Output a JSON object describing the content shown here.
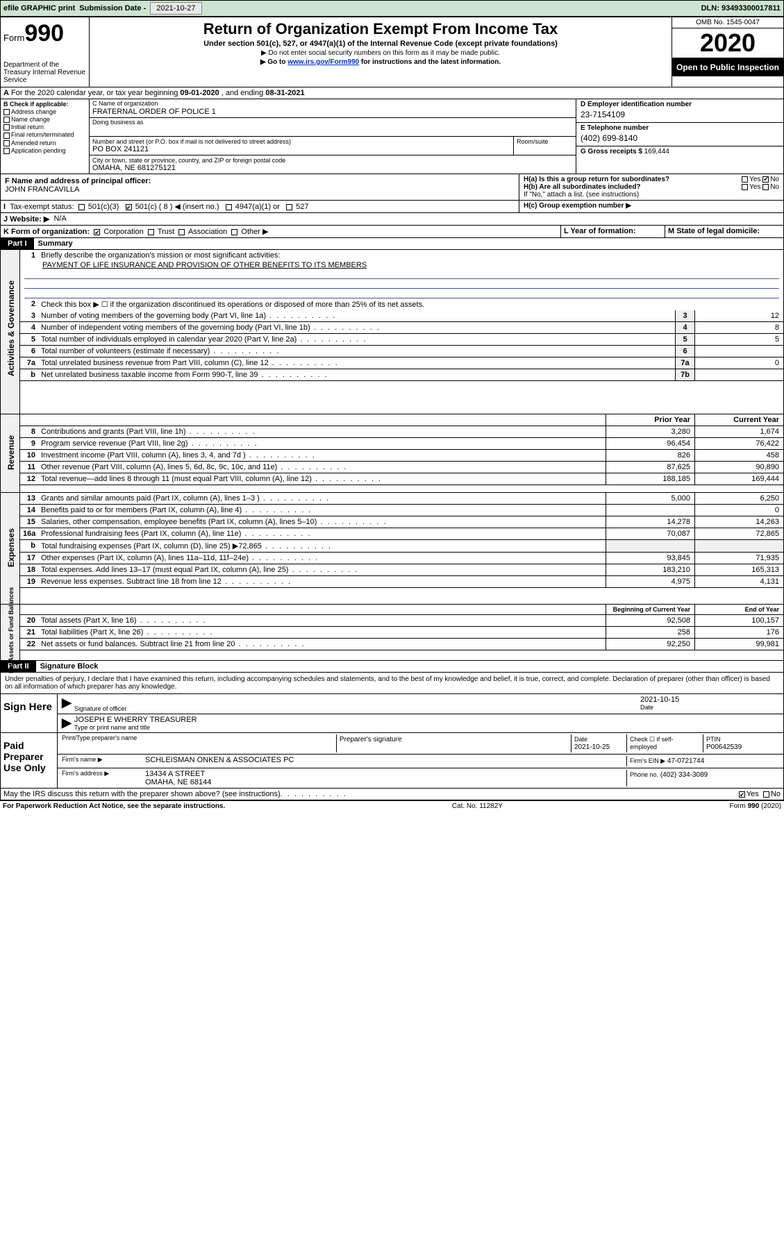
{
  "topbar": {
    "efile": "efile GRAPHIC print",
    "subdate_label": "Submission Date -",
    "subdate": "2021-10-27",
    "dln_label": "DLN:",
    "dln": "93493300017811"
  },
  "head": {
    "form": "Form",
    "num": "990",
    "dept": "Department of the Treasury\nInternal Revenue Service",
    "title": "Return of Organization Exempt From Income Tax",
    "subtitle": "Under section 501(c), 527, or 4947(a)(1) of the Internal Revenue Code (except private foundations)",
    "note1": "▶ Do not enter social security numbers on this form as it may be made public.",
    "note2_pre": "▶ Go to ",
    "note2_link": "www.irs.gov/Form990",
    "note2_post": " for instructions and the latest information.",
    "omb": "OMB No. 1545-0047",
    "year": "2020",
    "open": "Open to Public Inspection"
  },
  "lineA": {
    "text_pre": "For the 2020 calendar year, or tax year beginning ",
    "begin": "09-01-2020",
    "mid": " , and ending ",
    "end": "08-31-2021"
  },
  "colB": {
    "head": "B Check if applicable:",
    "items": [
      "Address change",
      "Name change",
      "Initial return",
      "Final return/terminated",
      "Amended return",
      "Application pending"
    ]
  },
  "C": {
    "name_label": "C Name of organization",
    "name": "FRATERNAL ORDER OF POLICE 1",
    "dba_label": "Doing business as",
    "addr_label": "Number and street (or P.O. box if mail is not delivered to street address)",
    "room_label": "Room/suite",
    "addr": "PO BOX 241121",
    "city_label": "City or town, state or province, country, and ZIP or foreign postal code",
    "city": "OMAHA, NE  681275121"
  },
  "D": {
    "label": "D Employer identification number",
    "val": "23-7154109"
  },
  "E": {
    "label": "E Telephone number",
    "val": "(402) 699-8140"
  },
  "G": {
    "label": "G Gross receipts $",
    "val": "169,444"
  },
  "F": {
    "label": "F  Name and address of principal officer:",
    "val": "JOHN FRANCAVILLA"
  },
  "H": {
    "a": "H(a)  Is this a group return for subordinates?",
    "b": "H(b)  Are all subordinates included?",
    "bnote": "If \"No,\" attach a list. (see instructions)",
    "c": "H(c)  Group exemption number ▶",
    "yes": "Yes",
    "no": "No"
  },
  "I": {
    "label": "Tax-exempt status:",
    "opts": [
      "501(c)(3)",
      "501(c) ( 8 ) ◀ (insert no.)",
      "4947(a)(1) or",
      "527"
    ]
  },
  "J": {
    "label": "J   Website: ▶",
    "val": "N/A"
  },
  "K": {
    "label": "K Form of organization:",
    "opts": [
      "Corporation",
      "Trust",
      "Association",
      "Other ▶"
    ]
  },
  "L": {
    "label": "L Year of formation:"
  },
  "M": {
    "label": "M State of legal domicile:"
  },
  "part1": {
    "bar": "Part I",
    "title": "Summary"
  },
  "gov": {
    "l1": "Briefly describe the organization's mission or most significant activities:",
    "l1v": "PAYMENT OF LIFE INSURANCE AND PROVISION OF OTHER BENEFITS TO ITS MEMBERS",
    "l2": "Check this box ▶ ☐  if the organization discontinued its operations or disposed of more than 25% of its net assets.",
    "rows": [
      {
        "n": "3",
        "t": "Number of voting members of the governing body (Part VI, line 1a)",
        "b": "3",
        "v": "12"
      },
      {
        "n": "4",
        "t": "Number of independent voting members of the governing body (Part VI, line 1b)",
        "b": "4",
        "v": "8"
      },
      {
        "n": "5",
        "t": "Total number of individuals employed in calendar year 2020 (Part V, line 2a)",
        "b": "5",
        "v": "5"
      },
      {
        "n": "6",
        "t": "Total number of volunteers (estimate if necessary)",
        "b": "6",
        "v": ""
      },
      {
        "n": "7a",
        "t": "Total unrelated business revenue from Part VIII, column (C), line 12",
        "b": "7a",
        "v": "0"
      },
      {
        "n": "b",
        "t": "Net unrelated business taxable income from Form 990-T, line 39",
        "b": "7b",
        "v": ""
      }
    ]
  },
  "cols": {
    "prior": "Prior Year",
    "current": "Current Year",
    "begin": "Beginning of Current Year",
    "end": "End of Year"
  },
  "rev": [
    {
      "n": "8",
      "t": "Contributions and grants (Part VIII, line 1h)",
      "p": "3,280",
      "c": "1,674"
    },
    {
      "n": "9",
      "t": "Program service revenue (Part VIII, line 2g)",
      "p": "96,454",
      "c": "76,422"
    },
    {
      "n": "10",
      "t": "Investment income (Part VIII, column (A), lines 3, 4, and 7d )",
      "p": "826",
      "c": "458"
    },
    {
      "n": "11",
      "t": "Other revenue (Part VIII, column (A), lines 5, 6d, 8c, 9c, 10c, and 11e)",
      "p": "87,625",
      "c": "90,890"
    },
    {
      "n": "12",
      "t": "Total revenue—add lines 8 through 11 (must equal Part VIII, column (A), line 12)",
      "p": "188,185",
      "c": "169,444"
    }
  ],
  "exp": [
    {
      "n": "13",
      "t": "Grants and similar amounts paid (Part IX, column (A), lines 1–3 )",
      "p": "5,000",
      "c": "6,250"
    },
    {
      "n": "14",
      "t": "Benefits paid to or for members (Part IX, column (A), line 4)",
      "p": "",
      "c": "0"
    },
    {
      "n": "15",
      "t": "Salaries, other compensation, employee benefits (Part IX, column (A), lines 5–10)",
      "p": "14,278",
      "c": "14,263"
    },
    {
      "n": "16a",
      "t": "Professional fundraising fees (Part IX, column (A), line 11e)",
      "p": "70,087",
      "c": "72,865"
    },
    {
      "n": "b",
      "t": "Total fundraising expenses (Part IX, column (D), line 25) ▶72,865",
      "p": null,
      "c": null
    },
    {
      "n": "17",
      "t": "Other expenses (Part IX, column (A), lines 11a–11d, 11f–24e)",
      "p": "93,845",
      "c": "71,935"
    },
    {
      "n": "18",
      "t": "Total expenses. Add lines 13–17 (must equal Part IX, column (A), line 25)",
      "p": "183,210",
      "c": "165,313"
    },
    {
      "n": "19",
      "t": "Revenue less expenses. Subtract line 18 from line 12",
      "p": "4,975",
      "c": "4,131"
    }
  ],
  "net": [
    {
      "n": "20",
      "t": "Total assets (Part X, line 16)",
      "p": "92,508",
      "c": "100,157"
    },
    {
      "n": "21",
      "t": "Total liabilities (Part X, line 26)",
      "p": "258",
      "c": "176"
    },
    {
      "n": "22",
      "t": "Net assets or fund balances. Subtract line 21 from line 20",
      "p": "92,250",
      "c": "99,981"
    }
  ],
  "part2": {
    "bar": "Part II",
    "title": "Signature Block"
  },
  "sig": {
    "decl": "Under penalties of perjury, I declare that I have examined this return, including accompanying schedules and statements, and to the best of my knowledge and belief, it is true, correct, and complete. Declaration of preparer (other than officer) is based on all information of which preparer has any knowledge.",
    "here": "Sign Here",
    "sigoff": "Signature of officer",
    "date": "Date",
    "datev": "2021-10-15",
    "name": "JOSEPH E WHERRY TREASURER",
    "nametxt": "Type or print name and title"
  },
  "paid": {
    "label": "Paid Preparer Use Only",
    "h1": "Print/Type preparer's name",
    "h2": "Preparer's signature",
    "h3": "Date",
    "h3v": "2021-10-25",
    "h4": "Check ☐ if self-employed",
    "h5": "PTIN",
    "h5v": "P00642539",
    "firm": "Firm's name      ▶",
    "firmv": "SCHLEISMAN ONKEN & ASSOCIATES PC",
    "ein": "Firm's EIN ▶",
    "einv": "47-0721744",
    "addr": "Firm's address ▶",
    "addrv": "13434 A STREET\nOMAHA, NE  68144",
    "phone": "Phone no.",
    "phonev": "(402) 334-3089"
  },
  "discuss": {
    "txt": "May the IRS discuss this return with the preparer shown above? (see instructions)",
    "yes": "Yes",
    "no": "No"
  },
  "footer": {
    "l": "For Paperwork Reduction Act Notice, see the separate instructions.",
    "m": "Cat. No. 11282Y",
    "r": "Form 990 (2020)"
  },
  "vtabs": {
    "gov": "Activities & Governance",
    "rev": "Revenue",
    "exp": "Expenses",
    "net": "Net Assets or Fund Balances"
  }
}
